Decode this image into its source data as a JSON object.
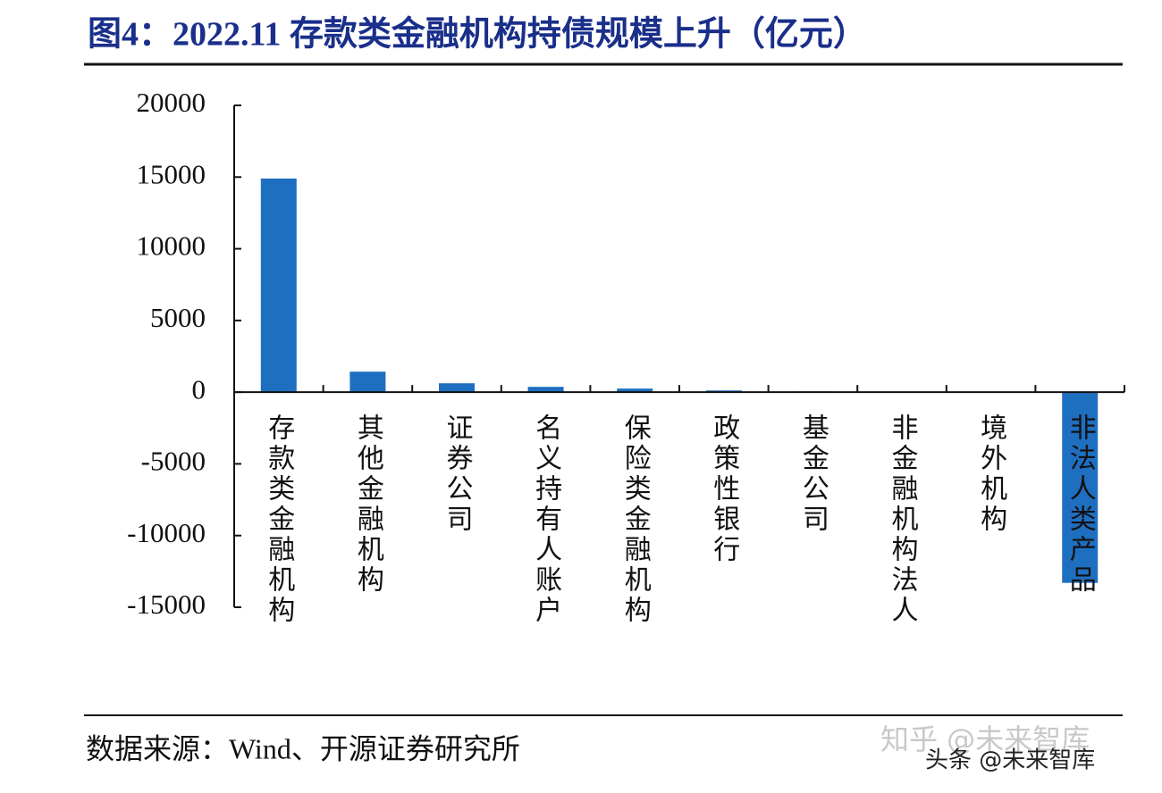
{
  "chart_data": {
    "type": "bar",
    "title": "图4：2022.11 存款类金融机构持债规模上升（亿元）",
    "source": "数据来源：Wind、开源证券研究所",
    "watermarks": [
      "知乎 @未来智库",
      "头条 @未来智库"
    ],
    "categories": [
      "存款类金融机构",
      "其他金融机构",
      "证券公司",
      "名义持有人账户",
      "保险类金融机构",
      "政策性银行",
      "基金公司",
      "非金融机构法人",
      "境外机构",
      "非法人类产品"
    ],
    "values": [
      14900,
      1430,
      620,
      370,
      250,
      120,
      50,
      20,
      -30,
      -13300
    ],
    "color": "#1f6fc1",
    "ylim": [
      -15000,
      20000
    ],
    "yticks": [
      -15000,
      -10000,
      -5000,
      0,
      5000,
      10000,
      15000,
      20000
    ],
    "grid": false
  }
}
